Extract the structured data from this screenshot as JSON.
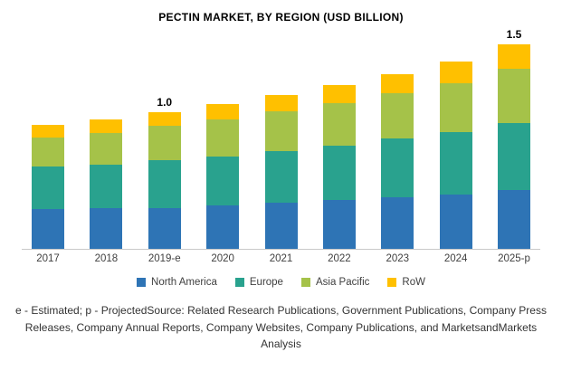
{
  "title": "PECTIN MARKET, BY REGION (USD BILLION)",
  "footer": {
    "note": "e - Estimated; p - ProjectedSource: Related Research Publications, Government Publications, Company Press Releases, Company Annual Reports, Company Websites, Company Publications, and MarketsandMarkets Analysis"
  },
  "chart_data": {
    "type": "bar",
    "stacked": true,
    "title": "PECTIN MARKET, BY REGION (USD BILLION)",
    "xlabel": "",
    "ylabel": "USD Billion",
    "ylim": [
      0,
      1.6
    ],
    "grid": false,
    "legend_position": "bottom",
    "categories": [
      "2017",
      "2018",
      "2019-e",
      "2020",
      "2021",
      "2022",
      "2023",
      "2024",
      "2025-p"
    ],
    "series": [
      {
        "name": "North America",
        "color": "#2e74b5",
        "values": [
          0.29,
          0.3,
          0.3,
          0.32,
          0.34,
          0.36,
          0.38,
          0.4,
          0.43
        ]
      },
      {
        "name": "Europe",
        "color": "#29a28e",
        "values": [
          0.31,
          0.32,
          0.35,
          0.36,
          0.38,
          0.4,
          0.43,
          0.46,
          0.49
        ]
      },
      {
        "name": "Asia Pacific",
        "color": "#a5c249",
        "values": [
          0.21,
          0.23,
          0.25,
          0.27,
          0.29,
          0.31,
          0.33,
          0.36,
          0.4
        ]
      },
      {
        "name": "RoW",
        "color": "#ffc000",
        "values": [
          0.09,
          0.1,
          0.1,
          0.11,
          0.12,
          0.13,
          0.14,
          0.16,
          0.18
        ]
      }
    ],
    "totals": [
      0.9,
      0.95,
      1.0,
      1.06,
      1.13,
      1.2,
      1.28,
      1.38,
      1.5
    ],
    "annotations": [
      {
        "category": "2019-e",
        "text": "1.0"
      },
      {
        "category": "2025-p",
        "text": "1.5"
      }
    ]
  }
}
